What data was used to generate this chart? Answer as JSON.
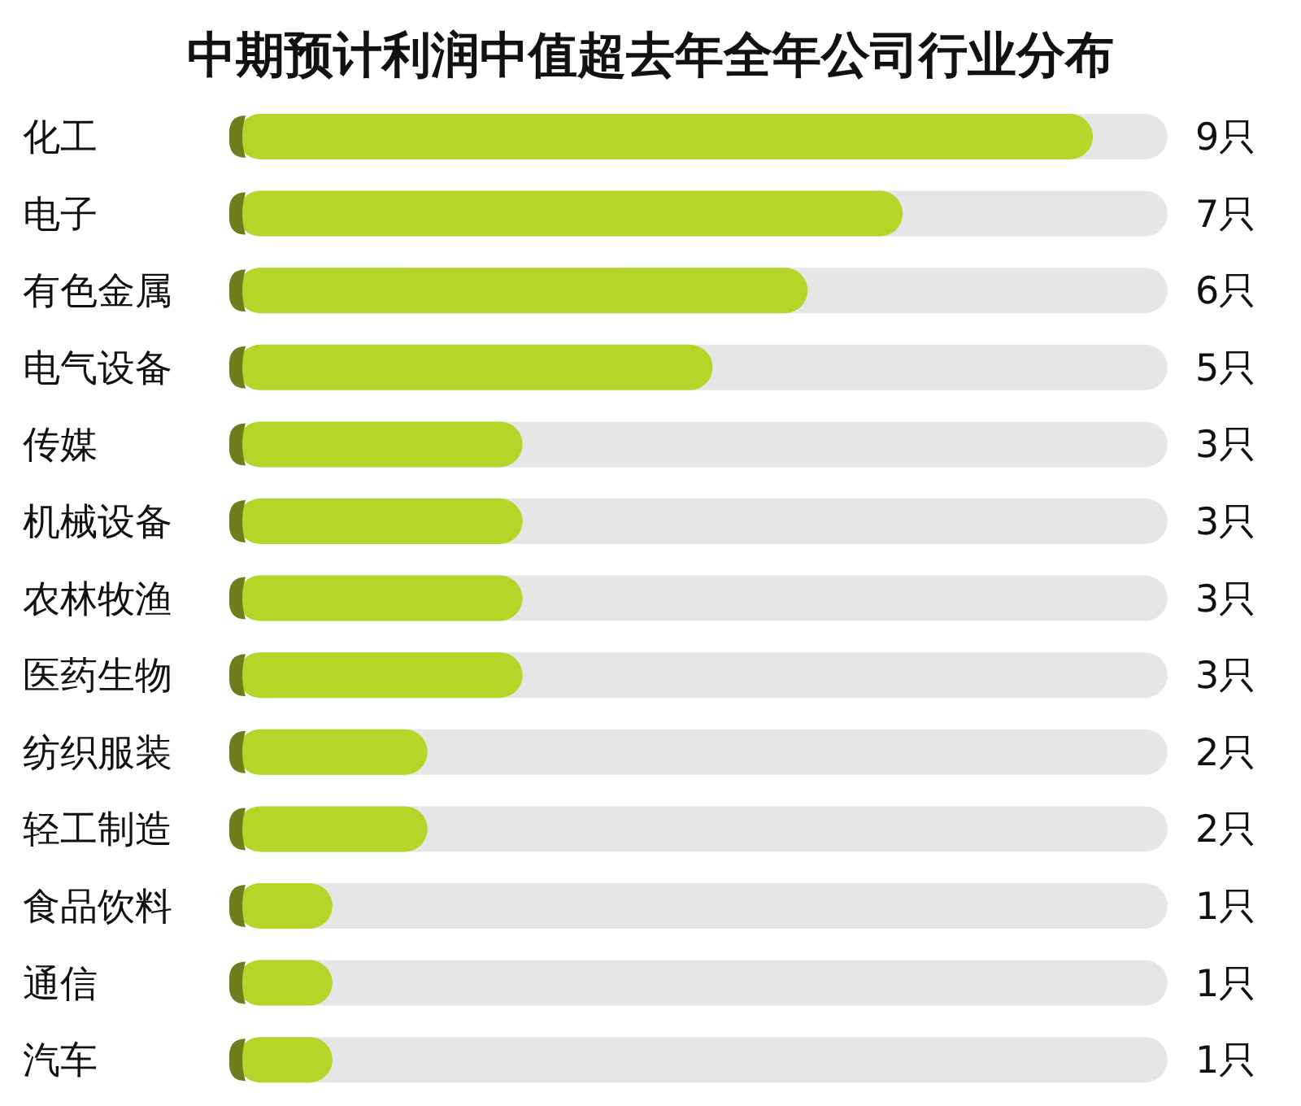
{
  "chart_data": {
    "type": "bar",
    "orientation": "horizontal",
    "title": "中期预计利润中值超去年全年公司行业分布",
    "categories": [
      "化工",
      "电子",
      "有色金属",
      "电气设备",
      "传媒",
      "机械设备",
      "农林牧渔",
      "医药生物",
      "纺织服装",
      "轻工制造",
      "食品饮料",
      "通信",
      "汽车"
    ],
    "values": [
      9,
      7,
      6,
      5,
      3,
      3,
      3,
      3,
      2,
      2,
      1,
      1,
      1
    ],
    "color": "#b3d629",
    "value_labels": [
      "9只",
      "7只",
      "6只",
      "5只",
      "3只",
      "3只",
      "3只",
      "3只",
      "2只",
      "2只",
      "1只",
      "1只",
      "1只"
    ]
  }
}
